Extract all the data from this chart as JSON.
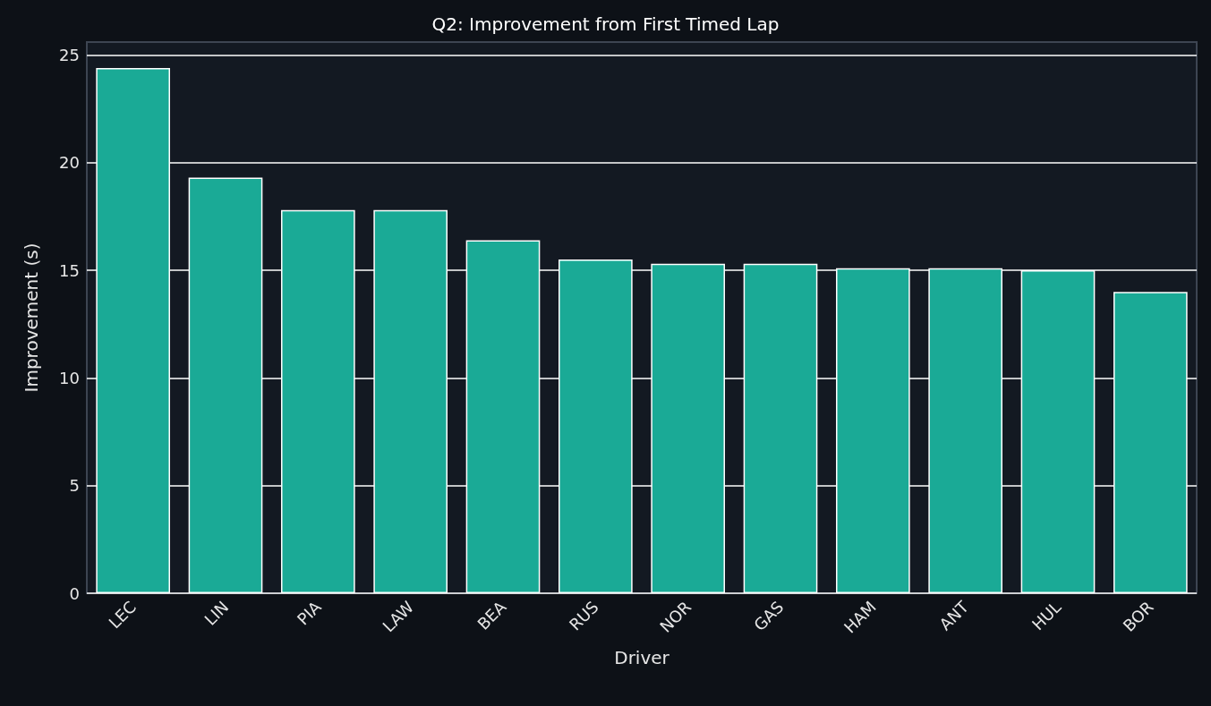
{
  "chart_data": {
    "type": "bar",
    "title": "Q2: Improvement from First Timed Lap",
    "xlabel": "Driver",
    "ylabel": "Improvement (s)",
    "categories": [
      "LEC",
      "LIN",
      "PIA",
      "LAW",
      "BEA",
      "RUS",
      "NOR",
      "GAS",
      "HAM",
      "ANT",
      "HUL",
      "BOR"
    ],
    "values": [
      24.4,
      19.3,
      17.8,
      17.8,
      16.4,
      15.5,
      15.3,
      15.3,
      15.1,
      15.1,
      15.0,
      14.0
    ],
    "color": "#1aaa96",
    "ylim": [
      0,
      25.6
    ],
    "yticks": [
      0,
      5,
      10,
      15,
      20,
      25
    ],
    "grid": "y"
  }
}
